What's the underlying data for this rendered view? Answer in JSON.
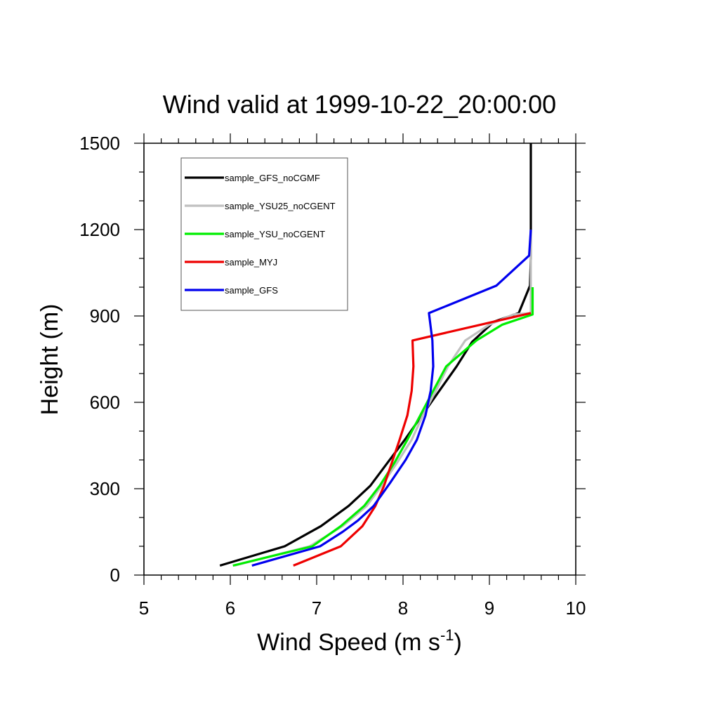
{
  "chart_data": {
    "type": "line",
    "title": "Wind valid at 1999-10-22_20:00:00",
    "xlabel": "Wind Speed (m s",
    "xlabel_superscript": "-1",
    "xlabel_suffix": ")",
    "ylabel": "Height (m)",
    "xlim": [
      5,
      10
    ],
    "ylim": [
      0,
      1500
    ],
    "xticks": [
      5,
      6,
      7,
      8,
      9,
      10
    ],
    "yticks": [
      0,
      300,
      600,
      900,
      1200,
      1500
    ],
    "xtick_labels": [
      "5",
      "6",
      "7",
      "8",
      "9",
      "10"
    ],
    "ytick_labels": [
      "0",
      "300",
      "600",
      "900",
      "1200",
      "1500"
    ],
    "grid": false,
    "legend_position": "top-left",
    "series": [
      {
        "name": "sample_GFS_noCGMF",
        "color": "#000000",
        "points": [
          [
            5.88,
            33
          ],
          [
            6.63,
            100
          ],
          [
            7.05,
            170
          ],
          [
            7.37,
            240
          ],
          [
            7.62,
            310
          ],
          [
            7.82,
            390
          ],
          [
            8.02,
            470
          ],
          [
            8.22,
            555
          ],
          [
            8.42,
            640
          ],
          [
            8.62,
            725
          ],
          [
            8.8,
            810
          ],
          [
            9.05,
            880
          ],
          [
            9.34,
            910
          ],
          [
            9.47,
            1005
          ],
          [
            9.48,
            1100
          ],
          [
            9.48,
            1200
          ],
          [
            9.48,
            1300
          ],
          [
            9.48,
            1500
          ]
        ]
      },
      {
        "name": "sample_YSU25_noCGENT",
        "color": "#c0c0c0",
        "points": [
          [
            6.05,
            33
          ],
          [
            6.92,
            100
          ],
          [
            7.3,
            170
          ],
          [
            7.58,
            240
          ],
          [
            7.75,
            310
          ],
          [
            7.93,
            390
          ],
          [
            8.1,
            470
          ],
          [
            8.23,
            555
          ],
          [
            8.38,
            640
          ],
          [
            8.52,
            725
          ],
          [
            8.72,
            815
          ],
          [
            9.0,
            870
          ],
          [
            9.28,
            905
          ],
          [
            9.48,
            910
          ],
          [
            9.48,
            1000
          ],
          [
            9.48,
            1200
          ]
        ]
      },
      {
        "name": "sample_YSU_noCGENT",
        "color": "#00ee00",
        "points": [
          [
            6.03,
            33
          ],
          [
            6.95,
            100
          ],
          [
            7.28,
            170
          ],
          [
            7.55,
            240
          ],
          [
            7.73,
            310
          ],
          [
            7.9,
            390
          ],
          [
            8.05,
            470
          ],
          [
            8.2,
            555
          ],
          [
            8.35,
            640
          ],
          [
            8.5,
            725
          ],
          [
            8.85,
            815
          ],
          [
            9.15,
            870
          ],
          [
            9.5,
            905
          ],
          [
            9.5,
            1000
          ]
        ]
      },
      {
        "name": "sample_MYJ",
        "color": "#ee0000",
        "points": [
          [
            6.73,
            33
          ],
          [
            7.28,
            100
          ],
          [
            7.53,
            170
          ],
          [
            7.68,
            240
          ],
          [
            7.78,
            310
          ],
          [
            7.87,
            390
          ],
          [
            7.96,
            470
          ],
          [
            8.05,
            555
          ],
          [
            8.1,
            640
          ],
          [
            8.12,
            725
          ],
          [
            8.11,
            815
          ],
          [
            9.48,
            910
          ]
        ]
      },
      {
        "name": "sample_GFS",
        "color": "#0000ee",
        "points": [
          [
            6.25,
            33
          ],
          [
            7.04,
            100
          ],
          [
            7.3,
            150
          ],
          [
            7.48,
            190
          ],
          [
            7.66,
            240
          ],
          [
            7.85,
            320
          ],
          [
            8.03,
            400
          ],
          [
            8.16,
            470
          ],
          [
            8.26,
            555
          ],
          [
            8.32,
            640
          ],
          [
            8.35,
            725
          ],
          [
            8.34,
            815
          ],
          [
            8.3,
            910
          ],
          [
            9.08,
            1005
          ],
          [
            9.46,
            1110
          ],
          [
            9.48,
            1200
          ]
        ]
      }
    ]
  }
}
